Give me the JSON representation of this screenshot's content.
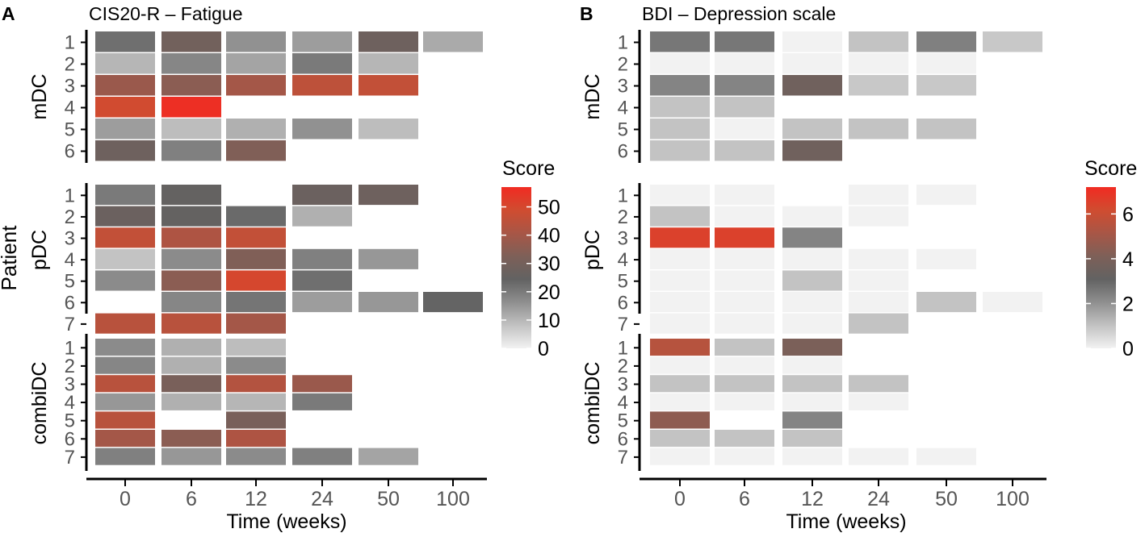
{
  "figure": {
    "shared_ylabel": "Patient",
    "legend_title": "Score"
  },
  "chart_data": [
    {
      "type": "heatmap",
      "panel_letter": "A",
      "title": "CIS20-R – Fatigue",
      "xlabel": "Time (weeks)",
      "ylabel": "Patient",
      "x_categories": [
        "0",
        "6",
        "12",
        "24",
        "50",
        "100"
      ],
      "groups": [
        {
          "name": "mDC",
          "rows": [
            "1",
            "2",
            "3",
            "4",
            "5",
            "6"
          ],
          "values": [
            [
              22,
              29,
              16,
              14,
              28,
              12
            ],
            [
              10,
              18,
              13,
              20,
              10,
              null
            ],
            [
              38,
              35,
              40,
              45,
              46,
              null
            ],
            [
              49,
              56,
              null,
              null,
              null,
              null
            ],
            [
              14,
              9,
              11,
              16,
              9,
              null
            ],
            [
              28,
              19,
              33,
              null,
              null,
              null
            ]
          ]
        },
        {
          "name": "pDC",
          "rows": [
            "1",
            "2",
            "3",
            "4",
            "5",
            "6",
            "7"
          ],
          "values": [
            [
              20,
              25,
              null,
              27,
              28,
              null
            ],
            [
              27,
              25,
              23,
              11,
              null,
              null
            ],
            [
              46,
              42,
              46,
              null,
              null,
              null
            ],
            [
              8,
              17,
              33,
              19,
              15,
              null
            ],
            [
              17,
              35,
              50,
              22,
              null,
              null
            ],
            [
              null,
              18,
              21,
              14,
              15,
              24
            ],
            [
              44,
              44,
              40,
              null,
              null,
              null
            ]
          ]
        },
        {
          "name": "combiDC",
          "rows": [
            "1",
            "2",
            "3",
            "4",
            "5",
            "6",
            "7"
          ],
          "values": [
            [
              17,
              11,
              9,
              null,
              null,
              null
            ],
            [
              18,
              11,
              17,
              null,
              null,
              null
            ],
            [
              44,
              31,
              43,
              38,
              null,
              null
            ],
            [
              15,
              11,
              10,
              20,
              null,
              null
            ],
            [
              44,
              null,
              31,
              null,
              null,
              null
            ],
            [
              40,
              35,
              42,
              null,
              null,
              null
            ],
            [
              19,
              15,
              17,
              19,
              13,
              null
            ]
          ]
        }
      ],
      "colorbar": {
        "min": 0,
        "max": 57,
        "ticks": [
          0,
          10,
          20,
          30,
          40,
          50
        ],
        "gradient": [
          "#f2f2f2",
          "#c2c2c2",
          "#8f8f8f",
          "#626262",
          "#7e6058",
          "#a85646",
          "#d04c30",
          "#f12b22"
        ]
      }
    },
    {
      "type": "heatmap",
      "panel_letter": "B",
      "title": "BDI – Depression scale",
      "xlabel": "Time (weeks)",
      "ylabel": "Patient",
      "x_categories": [
        "0",
        "6",
        "12",
        "24",
        "50",
        "100"
      ],
      "groups": [
        {
          "name": "mDC",
          "rows": [
            "1",
            "2",
            "3",
            "4",
            "5",
            "6"
          ],
          "values": [
            [
              2.6,
              2.6,
              0,
              1,
              2.4,
              0.9
            ],
            [
              0,
              0,
              0,
              0,
              0,
              null
            ],
            [
              2.3,
              2.3,
              3.6,
              0.9,
              0.9,
              null
            ],
            [
              1,
              1,
              null,
              null,
              null,
              null
            ],
            [
              1,
              0,
              1,
              1,
              1,
              null
            ],
            [
              1,
              1,
              3.6,
              null,
              null,
              null
            ]
          ]
        },
        {
          "name": "pDC",
          "rows": [
            "1",
            "2",
            "3",
            "4",
            "5",
            "6",
            "7"
          ],
          "values": [
            [
              0,
              0,
              null,
              0,
              0,
              null
            ],
            [
              1,
              0,
              0,
              0,
              null,
              null
            ],
            [
              6.5,
              6.5,
              2.3,
              null,
              null,
              null
            ],
            [
              0,
              0,
              0,
              0,
              0,
              null
            ],
            [
              0,
              0,
              1,
              0,
              null,
              null
            ],
            [
              0,
              0,
              0,
              0,
              1,
              0
            ],
            [
              0,
              0,
              0,
              1,
              null,
              null
            ]
          ]
        },
        {
          "name": "combiDC",
          "rows": [
            "1",
            "2",
            "3",
            "4",
            "5",
            "6",
            "7"
          ],
          "values": [
            [
              5.5,
              1,
              4,
              null,
              null,
              null
            ],
            [
              0,
              0,
              0,
              null,
              null,
              null
            ],
            [
              1,
              1,
              1,
              1,
              null,
              null
            ],
            [
              0,
              0,
              0,
              0,
              null,
              null
            ],
            [
              4.5,
              null,
              2.3,
              null,
              null,
              null
            ],
            [
              1,
              1,
              1,
              null,
              null,
              null
            ],
            [
              0,
              0,
              0,
              0,
              0,
              null
            ]
          ]
        }
      ],
      "colorbar": {
        "min": 0,
        "max": 7.2,
        "ticks": [
          0,
          2,
          4,
          6
        ],
        "gradient": [
          "#f2f2f2",
          "#c2c2c2",
          "#8f8f8f",
          "#626262",
          "#7e6058",
          "#a85646",
          "#d04c30",
          "#f12b22"
        ]
      }
    }
  ]
}
